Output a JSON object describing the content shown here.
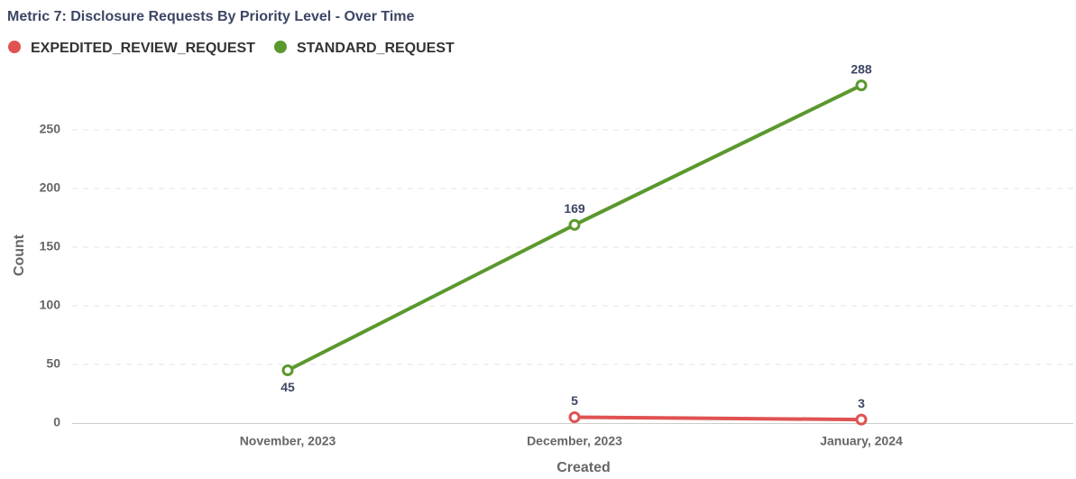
{
  "chart_data": {
    "type": "line",
    "title": "Metric 7: Disclosure Requests By Priority Level - Over Time",
    "x_label": "Created",
    "y_label": "Count",
    "categories": [
      "November, 2023",
      "December, 2023",
      "January, 2024"
    ],
    "series": [
      {
        "name": "EXPEDITED_REVIEW_REQUEST",
        "color": "#e05252",
        "values": [
          null,
          5,
          3
        ]
      },
      {
        "name": "STANDARD_REQUEST",
        "color": "#5b982d",
        "values": [
          45,
          169,
          288
        ]
      }
    ],
    "ylim": [
      0,
      300
    ],
    "yticks": [
      0,
      50,
      100,
      150,
      200,
      250
    ],
    "grid": true
  }
}
